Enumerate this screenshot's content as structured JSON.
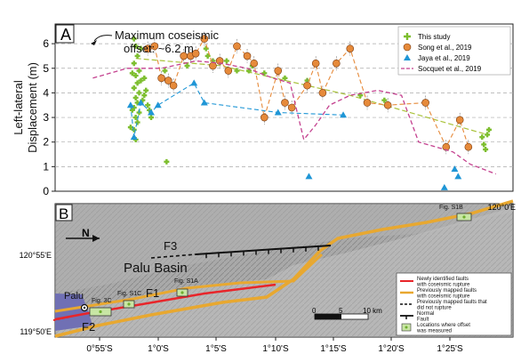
{
  "panel_a": {
    "label": "A",
    "callout": "Maximum coseismic",
    "callout2": "offset: ~6.2 m"
  },
  "panel_b": {
    "label": "B",
    "place_labels": {
      "north": "N",
      "basin": "Palu Basin",
      "city": "Palu",
      "f1": "F1",
      "f2": "F2",
      "f3": "F3"
    },
    "fig_labels": [
      "Fig. 3C",
      "Fig. S1C",
      "Fig. S1A",
      "Fig. S1B"
    ],
    "scale_labels": [
      "0",
      "5",
      "10 km"
    ],
    "lat_labels": [
      "120°0'E",
      "120°55'E",
      "119°50'E"
    ],
    "lon_labels": [
      "0°55'S",
      "1°0'S",
      "1°5'S",
      "1°10'S",
      "1°15'S",
      "1°20'S",
      "1°25'S"
    ],
    "legend": [
      {
        "label": "Newly identified faults with coseismic rupture",
        "kind": "red"
      },
      {
        "label": "Previously mapped faults with coseismic rupture",
        "kind": "orange"
      },
      {
        "label": "Previously mapped faults that did not rupture",
        "kind": "dash"
      },
      {
        "label": "Normal Fault",
        "kind": "normal"
      },
      {
        "label": "Locations where offset was measured",
        "kind": "loc"
      }
    ],
    "colors": {
      "newly_identified": "#e8252a",
      "previously_mapped": "#e8a830",
      "basin_fill": "#6f6fb2"
    }
  },
  "chart_data": {
    "type": "scatter",
    "ylabel": "Left-lateral Displacement (m)",
    "xlabel": "",
    "ylim": [
      0,
      6.8
    ],
    "yticks": [
      0,
      1,
      2,
      3,
      4,
      5,
      6
    ],
    "grid": true,
    "legend_placement": "top-right",
    "series": [
      {
        "name": "This study",
        "marker": "green-cross",
        "color": "#7dbe2e",
        "points": [
          [
            0.24,
            6.2
          ],
          [
            0.25,
            5.9
          ],
          [
            0.26,
            5.5
          ],
          [
            0.24,
            5.2
          ],
          [
            0.27,
            4.9
          ],
          [
            0.25,
            4.7
          ],
          [
            0.26,
            4.4
          ],
          [
            0.24,
            4.2
          ],
          [
            0.27,
            4.0
          ],
          [
            0.25,
            3.8
          ],
          [
            0.26,
            3.6
          ],
          [
            0.24,
            3.4
          ],
          [
            0.27,
            3.2
          ],
          [
            0.25,
            3.0
          ],
          [
            0.26,
            2.8
          ],
          [
            0.24,
            2.5
          ],
          [
            0.25,
            2.1
          ],
          [
            0.28,
            5.8
          ],
          [
            0.28,
            4.5
          ],
          [
            0.29,
            3.7
          ],
          [
            0.3,
            4.6
          ],
          [
            0.3,
            3.9
          ],
          [
            0.23,
            4.8
          ],
          [
            0.23,
            3.3
          ],
          [
            0.31,
            4.1
          ],
          [
            0.32,
            3.5
          ],
          [
            0.22,
            2.6
          ],
          [
            0.33,
            3.3
          ],
          [
            0.34,
            3.0
          ],
          [
            0.42,
            4.9
          ],
          [
            0.43,
            1.2
          ],
          [
            0.55,
            5.1
          ],
          [
            0.66,
            5.8
          ],
          [
            0.67,
            5.5
          ],
          [
            0.7,
            5.3
          ],
          [
            0.78,
            5.3
          ],
          [
            0.84,
            4.9
          ],
          [
            0.91,
            4.9
          ],
          [
            0.93,
            5.1
          ],
          [
            1.0,
            4.8
          ],
          [
            1.12,
            4.6
          ],
          [
            1.25,
            4.5
          ],
          [
            1.56,
            3.9
          ],
          [
            1.7,
            3.7
          ],
          [
            2.27,
            2.2
          ],
          [
            2.28,
            1.9
          ],
          [
            2.29,
            1.7
          ],
          [
            2.31,
            2.5
          ],
          [
            2.3,
            2.3
          ]
        ]
      },
      {
        "name": "Song et al., 2019",
        "marker": "orange-circle",
        "color": "#e68a3a",
        "points": [
          [
            0.32,
            5.8
          ],
          [
            0.36,
            5.9
          ],
          [
            0.4,
            4.6
          ],
          [
            0.44,
            4.5
          ],
          [
            0.47,
            4.3
          ],
          [
            0.53,
            5.5
          ],
          [
            0.57,
            5.5
          ],
          [
            0.6,
            5.6
          ],
          [
            0.65,
            6.2
          ],
          [
            0.7,
            5.1
          ],
          [
            0.74,
            5.3
          ],
          [
            0.79,
            4.9
          ],
          [
            0.84,
            5.9
          ],
          [
            0.9,
            5.5
          ],
          [
            0.94,
            5.2
          ],
          [
            1.0,
            3.0
          ],
          [
            1.08,
            4.9
          ],
          [
            1.12,
            3.6
          ],
          [
            1.16,
            3.4
          ],
          [
            1.25,
            4.3
          ],
          [
            1.3,
            5.2
          ],
          [
            1.34,
            4.0
          ],
          [
            1.42,
            5.2
          ],
          [
            1.5,
            5.8
          ],
          [
            1.6,
            3.6
          ],
          [
            1.72,
            3.5
          ],
          [
            1.94,
            3.6
          ],
          [
            2.06,
            1.8
          ],
          [
            2.14,
            2.9
          ],
          [
            2.19,
            1.8
          ]
        ]
      },
      {
        "name": "Jaya et al., 2019",
        "marker": "blue-triangle",
        "color": "#1f96d6",
        "points": [
          [
            0.22,
            3.5
          ],
          [
            0.24,
            2.2
          ],
          [
            0.28,
            3.6
          ],
          [
            0.34,
            3.2
          ],
          [
            0.38,
            3.5
          ],
          [
            0.59,
            4.4
          ],
          [
            0.65,
            3.6
          ],
          [
            1.08,
            3.2
          ],
          [
            1.26,
            0.6
          ],
          [
            1.46,
            3.1
          ],
          [
            2.05,
            0.15
          ],
          [
            2.11,
            0.9
          ],
          [
            2.13,
            0.6
          ]
        ]
      },
      {
        "name": "Socquet et al., 2019",
        "marker": "pink-dashed-line",
        "color": "#c4418f",
        "points": [
          [
            0.0,
            4.6
          ],
          [
            0.2,
            5.0
          ],
          [
            0.4,
            5.0
          ],
          [
            0.6,
            5.3
          ],
          [
            0.75,
            5.2
          ],
          [
            0.9,
            5.0
          ],
          [
            1.05,
            4.6
          ],
          [
            1.15,
            4.4
          ],
          [
            1.23,
            2.1
          ],
          [
            1.3,
            2.7
          ],
          [
            1.38,
            3.5
          ],
          [
            1.5,
            3.9
          ],
          [
            1.66,
            4.1
          ],
          [
            1.8,
            3.9
          ],
          [
            1.9,
            2.0
          ],
          [
            2.0,
            1.8
          ],
          [
            2.1,
            1.6
          ],
          [
            2.2,
            1.1
          ],
          [
            2.35,
            0.7
          ]
        ]
      }
    ]
  }
}
